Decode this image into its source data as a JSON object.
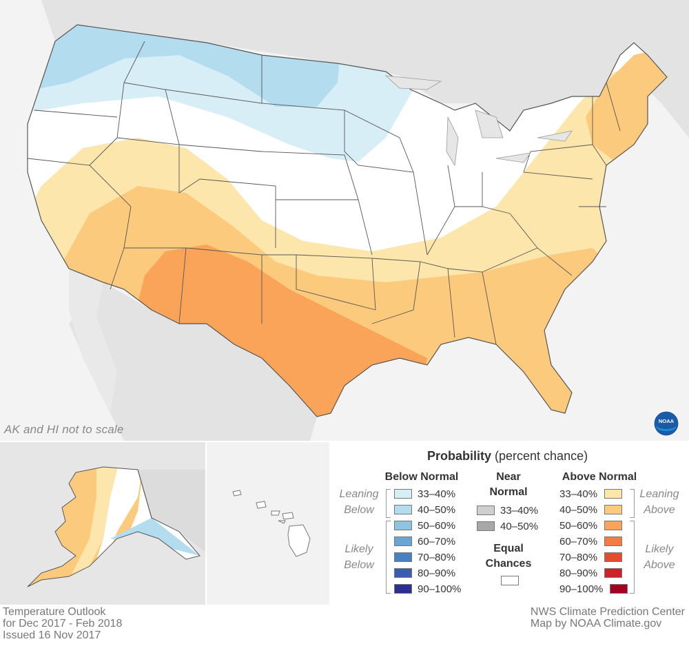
{
  "title": {
    "line1": "Temperature Outlook",
    "line2": "for Dec 2017 - Feb 2018",
    "line3": "Issued 16 Nov 2017"
  },
  "credits": {
    "line1": "NWS Climate Prediction Center",
    "line2": "Map by NOAA Climate.gov"
  },
  "scale_note": "AK and HI not to scale",
  "logo": {
    "icon": "noaa-logo-icon",
    "text": "NOAA"
  },
  "legend": {
    "title_bold": "Probability",
    "title_rest": " (percent chance)",
    "below_header": "Below Normal",
    "near_header_1": "Near",
    "near_header_2": "Normal",
    "above_header": "Above Normal",
    "equal_header_1": "Equal",
    "equal_header_2": "Chances",
    "leaning_below_1": "Leaning",
    "leaning_below_2": "Below",
    "likely_below_1": "Likely",
    "likely_below_2": "Below",
    "leaning_above_1": "Leaning",
    "leaning_above_2": "Above",
    "likely_above_1": "Likely",
    "likely_above_2": "Above",
    "below": [
      {
        "label": "33–40%",
        "color": "#d8eef6"
      },
      {
        "label": "40–50%",
        "color": "#b3dcee"
      },
      {
        "label": "50–60%",
        "color": "#8ec4e2"
      },
      {
        "label": "60–70%",
        "color": "#6aa6d4"
      },
      {
        "label": "70–80%",
        "color": "#4a80c4"
      },
      {
        "label": "80–90%",
        "color": "#3a5cb0"
      },
      {
        "label": "90–100%",
        "color": "#2b3090"
      }
    ],
    "near": [
      {
        "label": "33–40%",
        "color": "#cfcfcf"
      },
      {
        "label": "40–50%",
        "color": "#a8a8a8"
      }
    ],
    "above": [
      {
        "label": "33–40%",
        "color": "#fde6ab"
      },
      {
        "label": "40–50%",
        "color": "#fcca7c"
      },
      {
        "label": "50–60%",
        "color": "#faa45a"
      },
      {
        "label": "60–70%",
        "color": "#f57b45"
      },
      {
        "label": "70–80%",
        "color": "#e44c32"
      },
      {
        "label": "80–90%",
        "color": "#cc2228"
      },
      {
        "label": "90–100%",
        "color": "#a4001f"
      }
    ],
    "equal_color": "#ffffff"
  },
  "colors": {
    "background_land": "#e6e6e6",
    "water": "#f4f4f4",
    "state_lines": "#555555"
  }
}
